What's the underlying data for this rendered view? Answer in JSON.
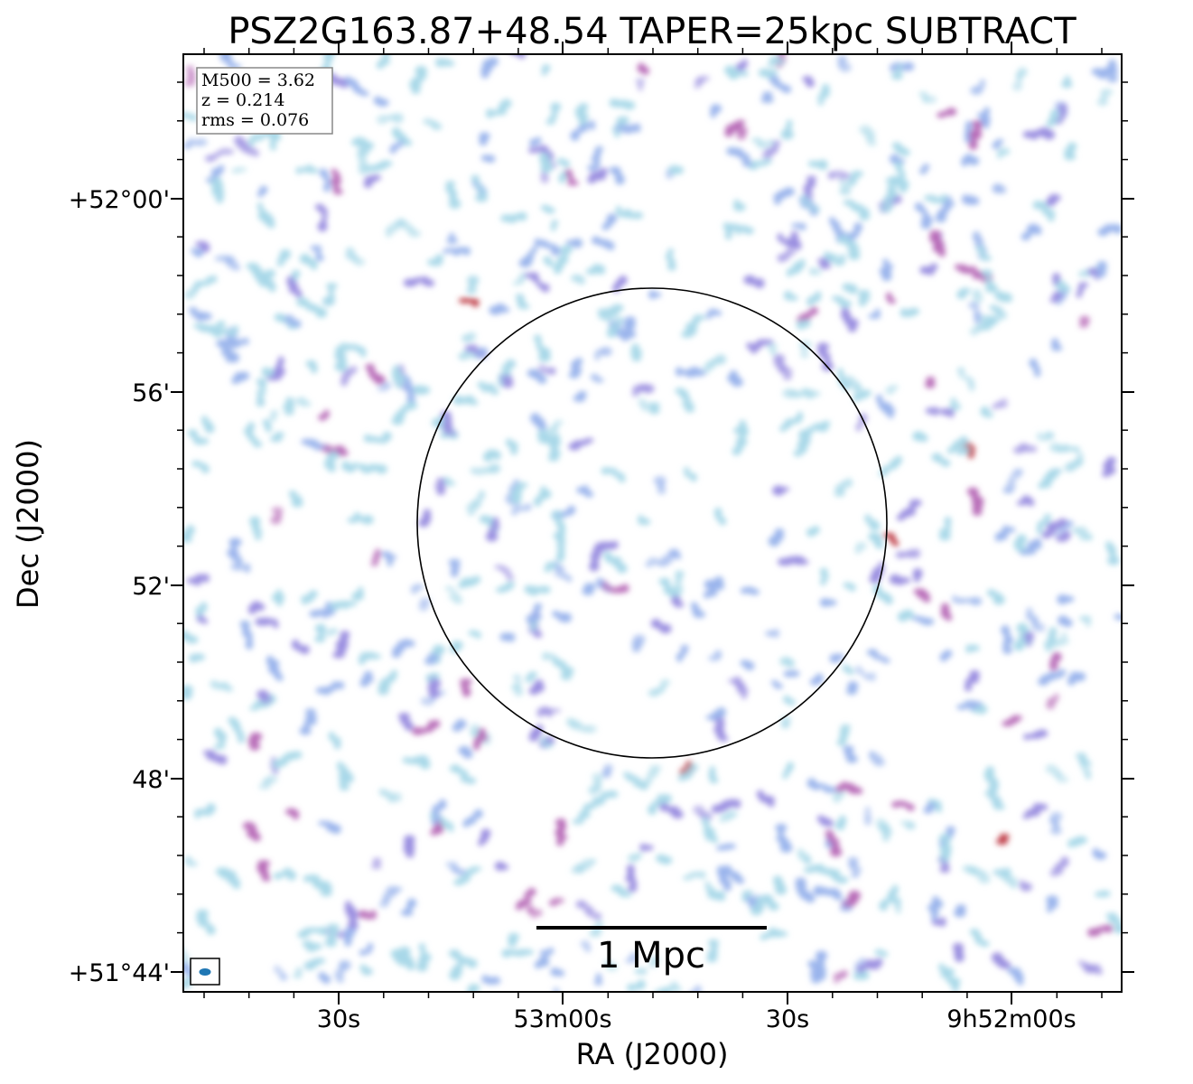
{
  "chart_data": {
    "type": "heatmap",
    "title": "PSZ2G163.87+48.54 TAPER=25kpc SUBTRACT",
    "xlabel": "RA (J2000)",
    "ylabel": "Dec (J2000)",
    "x_ticks": [
      "30s",
      "53m00s",
      "30s",
      "9h52m00s"
    ],
    "y_ticks": [
      "+52°00'",
      "56'",
      "52'",
      "48'",
      "+51°44'"
    ],
    "info_box": [
      "M500 = 3.62",
      "z = 0.214",
      "rms = 0.076"
    ],
    "scale_bar_label": "1 Mpc",
    "circle": true,
    "beam_marker": true,
    "colormap": [
      "#a8d8e8",
      "#9ab4ec",
      "#9a8ee0",
      "#b86cb8",
      "#c0404a"
    ]
  }
}
